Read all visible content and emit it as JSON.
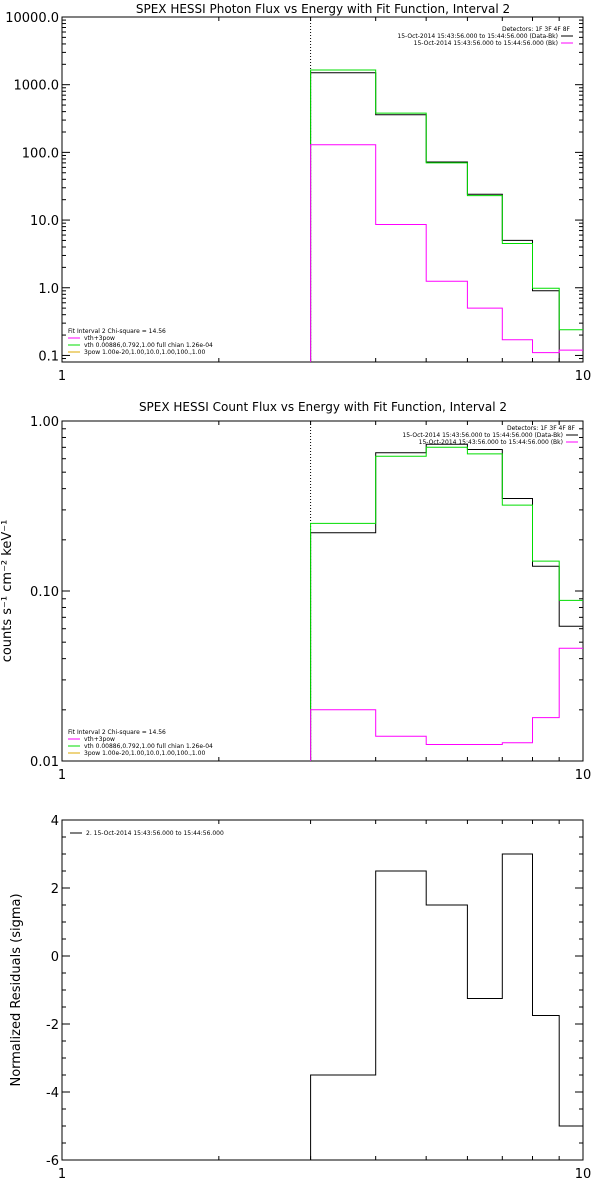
{
  "chart_data": [
    {
      "type": "line",
      "title": "SPEX HESSI Photon Flux vs Energy with Fit Function, Interval 2",
      "xlabel": "",
      "ylabel": "",
      "xscale": "log",
      "yscale": "log",
      "xlim": [
        1,
        10
      ],
      "ylim": [
        0.08,
        10000
      ],
      "xticks": [
        {
          "v": 1,
          "label": "1"
        },
        {
          "v": 10,
          "label": "10"
        }
      ],
      "yticks": [
        {
          "v": 0.1,
          "label": "0.1"
        },
        {
          "v": 1,
          "label": "1.0"
        },
        {
          "v": 10,
          "label": "10.0"
        },
        {
          "v": 100,
          "label": "100.0"
        },
        {
          "v": 1000,
          "label": "1000.0"
        },
        {
          "v": 10000,
          "label": "10000.0"
        }
      ],
      "vline": 3.0,
      "bin_edges": [
        3.0,
        4.0,
        5.0,
        6.0,
        7.0,
        8.0,
        9.0,
        10.0
      ],
      "series": [
        {
          "name": "15-Oct-2014 15:43:56.000 to 15:44:56.000 (Data-Bk)",
          "color": "#000000",
          "values": [
            1500,
            360,
            72,
            24,
            5.0,
            0.9,
            0.08
          ]
        },
        {
          "name": "vth",
          "color": "#00dd00",
          "values": [
            1650,
            380,
            70,
            23,
            4.5,
            0.98,
            0.24
          ]
        },
        {
          "name": "15-Oct-2014 15:43:56.000 to 15:44:56.000 (Bk)",
          "color": "#ff00ff",
          "values": [
            130,
            8.6,
            1.25,
            0.5,
            0.17,
            0.11,
            0.12
          ]
        }
      ],
      "legend_top": {
        "header": "Detectors: 1F 3F 4F 8F",
        "entries": [
          {
            "label": "15-Oct-2014 15:43:56.000 to 15:44:56.000 (Data-Bk)",
            "color": "#000000"
          },
          {
            "label": "15-Oct-2014 15:43:56.000 to 15:44:56.000 (Bk)",
            "color": "#ff00ff"
          }
        ]
      },
      "legend_bottom": {
        "header": "Fit Interval 2   Chi-square = 14.56",
        "entries": [
          {
            "label": "vth+3pow",
            "color": "#ff00ff"
          },
          {
            "label": "vth 0.00886,0.792,1.00  full chian 1.26e-04",
            "color": "#00dd00"
          },
          {
            "label": "3pow 1.00e-20,1.00,10.0,1.00,100.,1.00",
            "color": "#ddaa00"
          }
        ]
      }
    },
    {
      "type": "line",
      "title": "SPEX HESSI Count Flux vs Energy with Fit Function, Interval 2",
      "xlabel": "",
      "ylabel": "counts s⁻¹ cm⁻² keV⁻¹",
      "xscale": "log",
      "yscale": "log",
      "xlim": [
        1,
        10
      ],
      "ylim": [
        0.01,
        1.0
      ],
      "xticks": [
        {
          "v": 1,
          "label": "1"
        },
        {
          "v": 10,
          "label": "10"
        }
      ],
      "yticks": [
        {
          "v": 0.01,
          "label": "0.01"
        },
        {
          "v": 0.1,
          "label": "0.10"
        },
        {
          "v": 1,
          "label": "1.00"
        }
      ],
      "vline": 3.0,
      "bin_edges": [
        3.0,
        4.0,
        5.0,
        6.0,
        7.0,
        8.0,
        9.0,
        10.0
      ],
      "series": [
        {
          "name": "15-Oct-2014 15:43:56.000 to 15:44:56.000 (Data-Bk)",
          "color": "#000000",
          "values": [
            0.22,
            0.65,
            0.73,
            0.68,
            0.35,
            0.14,
            0.062
          ]
        },
        {
          "name": "vth",
          "color": "#00dd00",
          "values": [
            0.25,
            0.62,
            0.7,
            0.64,
            0.32,
            0.15,
            0.088
          ]
        },
        {
          "name": "15-Oct-2014 15:43:56.000 to 15:44:56.000 (Bk)",
          "color": "#ff00ff",
          "values": [
            0.02,
            0.014,
            0.0125,
            0.0125,
            0.0128,
            0.018,
            0.046
          ]
        }
      ],
      "legend_top": {
        "header": "Detectors: 1F 3F 4F 8F",
        "entries": [
          {
            "label": "15-Oct-2014 15:43:56.000 to 15:44:56.000 (Data-Bk)",
            "color": "#000000"
          },
          {
            "label": "15-Oct-2014 15:43:56.000 to 15:44:56.000 (Bk)",
            "color": "#ff00ff"
          }
        ]
      },
      "legend_bottom": {
        "header": "Fit Interval 2   Chi-square = 14.56",
        "entries": [
          {
            "label": "vth+3pow",
            "color": "#ff00ff"
          },
          {
            "label": "vth 0.00886,0.792,1.00  full chian 1.26e-04",
            "color": "#00dd00"
          },
          {
            "label": "3pow 1.00e-20,1.00,10.0,1.00,100.,1.00",
            "color": "#ddaa00"
          }
        ]
      }
    },
    {
      "type": "line",
      "title": "",
      "xlabel": "",
      "ylabel": "Normalized Residuals (sigma)",
      "xscale": "log",
      "yscale": "linear",
      "xlim": [
        1,
        10
      ],
      "ylim": [
        -6,
        4
      ],
      "xticks": [
        {
          "v": 1,
          "label": "1"
        },
        {
          "v": 10,
          "label": "10"
        }
      ],
      "yticks": [
        {
          "v": -6,
          "label": "-6"
        },
        {
          "v": -4,
          "label": "-4"
        },
        {
          "v": -2,
          "label": "-2"
        },
        {
          "v": 0,
          "label": "0"
        },
        {
          "v": 2,
          "label": "2"
        },
        {
          "v": 4,
          "label": "4"
        }
      ],
      "bin_edges": [
        3.0,
        4.0,
        5.0,
        6.0,
        7.0,
        8.0,
        9.0,
        10.0
      ],
      "series": [
        {
          "name": "2. 15-Oct-2014 15:43:56.000 to 15:44:56.000",
          "color": "#000000",
          "values": [
            -3.5,
            2.5,
            1.5,
            -1.25,
            3.0,
            -1.75,
            -5.0
          ]
        }
      ],
      "legend_top": {
        "header": "",
        "entries": [
          {
            "label": "2. 15-Oct-2014 15:43:56.000 to 15:44:56.000",
            "color": "#000000"
          }
        ]
      }
    }
  ]
}
